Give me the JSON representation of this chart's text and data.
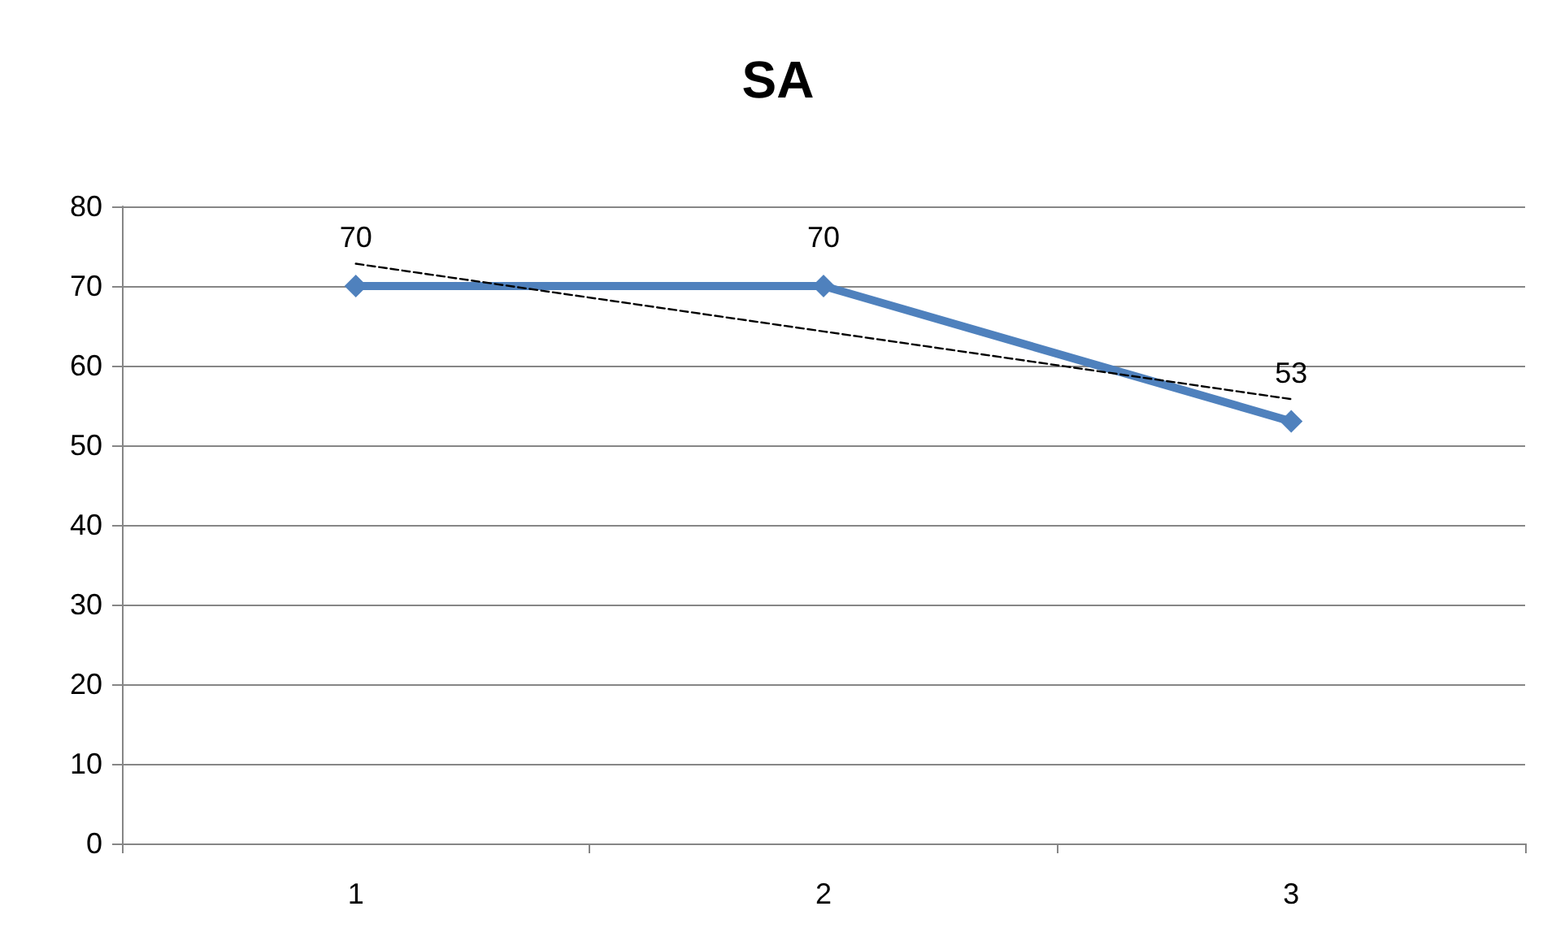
{
  "chart_data": {
    "type": "line",
    "title": "SA",
    "categories": [
      "1",
      "2",
      "3"
    ],
    "series": [
      {
        "color": "#4f81bd",
        "values": [
          70,
          70,
          53
        ],
        "value_labels": [
          "70",
          "70",
          "53"
        ],
        "marker": "diamond",
        "line_style": "solid"
      },
      {
        "color": "#000000",
        "x": [
          "1",
          "2",
          "3"
        ],
        "values": [
          72.8,
          64.3,
          55.8
        ],
        "marker": "none",
        "line_style": "dashed"
      }
    ],
    "ylim": [
      0,
      80
    ],
    "yticks": [
      0,
      10,
      20,
      30,
      40,
      50,
      60,
      70,
      80
    ],
    "grid": "y"
  }
}
